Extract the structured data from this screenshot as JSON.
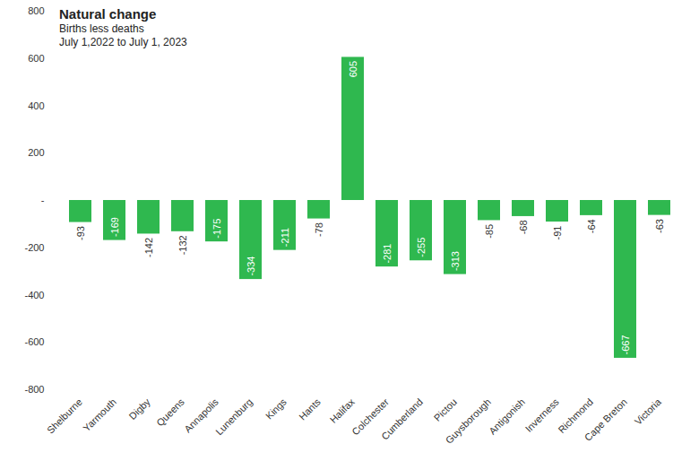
{
  "chart_data": {
    "type": "bar",
    "title": "Natural change",
    "subtitle": [
      "Births less deaths",
      "July 1,2022 to July 1, 2023"
    ],
    "categories": [
      "Shelburne",
      "Yarmouth",
      "Digby",
      "Queens",
      "Annapolis",
      "Lunenburg",
      "Kings",
      "Hants",
      "Halifax",
      "Colchester",
      "Cumberland",
      "Pictou",
      "Guysborough",
      "Antigonish",
      "Inverness",
      "Richmond",
      "Cape Breton",
      "Victoria"
    ],
    "values": [
      -93,
      -169,
      -142,
      -132,
      -175,
      -334,
      -211,
      -78,
      605,
      -281,
      -255,
      -313,
      -85,
      -68,
      -91,
      -64,
      -667,
      -63
    ],
    "color": "#2fb84f",
    "ylim": [
      -800,
      800
    ],
    "yticks": [
      -800,
      -600,
      -400,
      -200,
      {
        "value": 0,
        "label": "-"
      },
      200,
      400,
      600,
      800
    ],
    "grid": false,
    "data_labels": true
  }
}
